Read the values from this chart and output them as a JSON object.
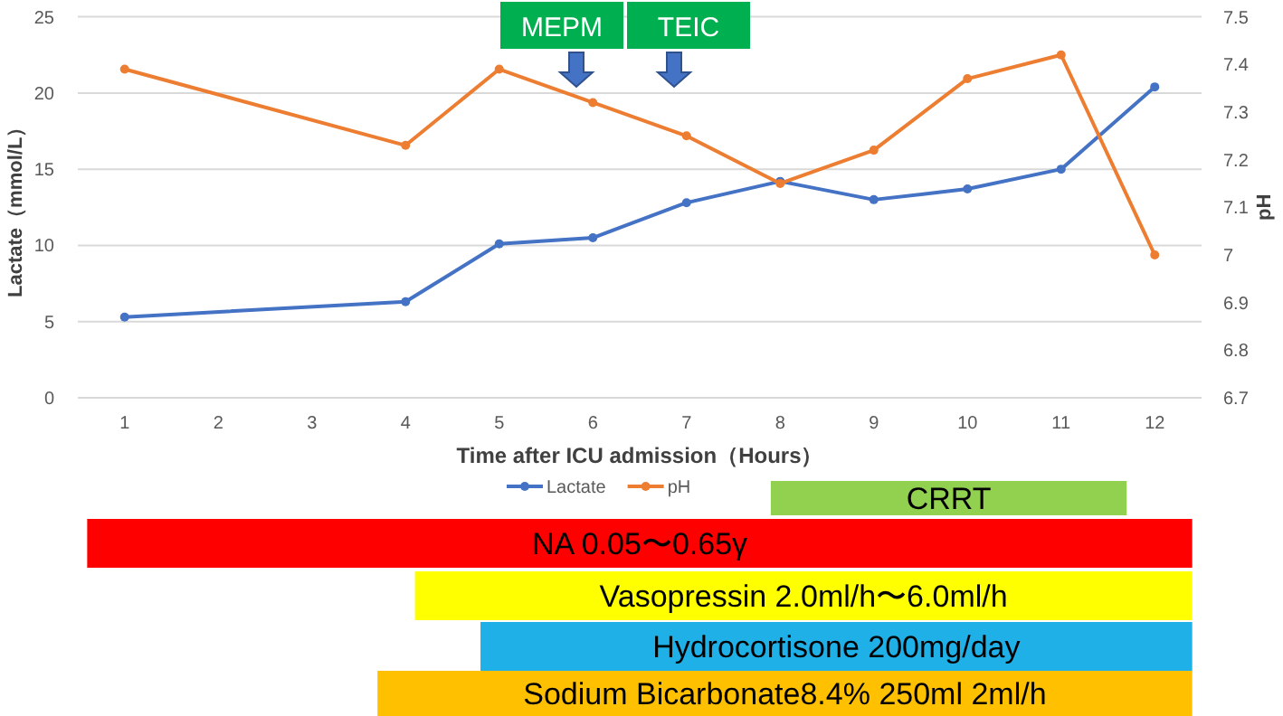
{
  "chart_data": [
    {
      "type": "line",
      "xlabel": "Time after ICU admission（Hours）",
      "ylabel": "Lactate（mmol/L）",
      "y2label": "pH",
      "x": [
        1,
        4,
        5,
        6,
        7,
        8,
        9,
        10,
        11,
        12
      ],
      "xlim": [
        0.5,
        12.5
      ],
      "xticks": [
        1,
        2,
        3,
        4,
        5,
        6,
        7,
        8,
        9,
        10,
        11,
        12
      ],
      "ylim": [
        0,
        25
      ],
      "yticks": [
        0,
        5,
        10,
        15,
        20,
        25
      ],
      "y2lim": [
        6.7,
        7.5
      ],
      "y2ticks": [
        6.7,
        6.8,
        6.9,
        7,
        7.1,
        7.2,
        7.3,
        7.4,
        7.5
      ],
      "series": [
        {
          "name": "Lactate",
          "color": "#4472c4",
          "values": [
            5.3,
            6.3,
            10.1,
            10.5,
            12.8,
            14.2,
            13.0,
            13.7,
            15.0,
            20.4
          ]
        },
        {
          "name": "pH",
          "color": "#ed7d31",
          "axis": "y2",
          "values": [
            7.39,
            7.23,
            7.39,
            7.32,
            7.25,
            7.15,
            7.22,
            7.37,
            7.42,
            7.0
          ]
        }
      ],
      "marker": "circle",
      "grid": "y",
      "legend": "bottom",
      "annotations": [
        "MEPM",
        "TEIC"
      ]
    },
    {
      "type": "bar",
      "orientation": "horizontal",
      "tick_labels": false,
      "categories": [
        "CRRT",
        "NA 0.05〜0.65γ",
        "Vasopressin 2.0ml/h〜6.0ml/h",
        "Hydrocortisone 200mg/day",
        "Sodium Bicarbonate8.4% 250ml 2ml/h"
      ],
      "base": [
        7.9,
        0.6,
        4.1,
        4.8,
        3.7
      ],
      "values": [
        3.8,
        11.8,
        8.3,
        7.6,
        8.7
      ],
      "colors": [
        "#92d050",
        "#ff0000",
        "#ffff00",
        "#1fb0e8",
        "#ffc000"
      ],
      "xlim": [
        0.5,
        12.5
      ]
    }
  ]
}
